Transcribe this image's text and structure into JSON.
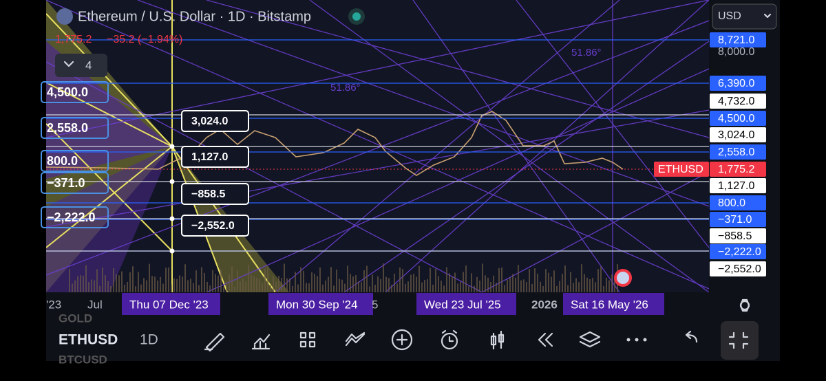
{
  "header": {
    "title": "Ethereum / U.S. Dollar · 1D · Bitstamp",
    "price": "1,775.2",
    "change": "−35.2 (−1.94%)",
    "indicator_count": "4",
    "currency": "USD"
  },
  "price_axis": [
    {
      "label": "8,721.0",
      "color": "#2962ff"
    },
    {
      "label": "8,000.0",
      "color": null
    },
    {
      "label": "6,390.0",
      "color": "#2962ff"
    },
    {
      "label": "4,732.0",
      "color": "#ffffff"
    },
    {
      "label": "4,500.0",
      "color": "#2962ff"
    },
    {
      "label": "3,024.0",
      "color": "#ffffff"
    },
    {
      "label": "2,558.0",
      "color": "#2962ff"
    },
    {
      "label": "1,775.2",
      "color": "#f23645"
    },
    {
      "label": "1,127.0",
      "color": "#ffffff"
    },
    {
      "label": "800.0",
      "color": "#2962ff"
    },
    {
      "label": "−371.0",
      "color": "#2962ff"
    },
    {
      "label": "−858.5",
      "color": "#ffffff"
    },
    {
      "label": "−2,222.0",
      "color": "#2962ff"
    },
    {
      "label": "−2,552.0",
      "color": "#ffffff"
    }
  ],
  "symbol_tag": "ETHUSD",
  "left_labels": [
    "4,500.0",
    "2,558.0",
    "800.0",
    "−371.0",
    "−2,222.0"
  ],
  "chart_labels": [
    "3,024.0",
    "1,127.0",
    "−858.5",
    "−2,552.0"
  ],
  "angle_labels": [
    "51.86°",
    "51.86°"
  ],
  "time_axis": [
    {
      "label": "'23",
      "highlight": false
    },
    {
      "label": "Jul",
      "highlight": false
    },
    {
      "label": "Thu 07 Dec '23",
      "highlight": true
    },
    {
      "label": "Mon 30 Sep '24",
      "highlight": true
    },
    {
      "label": "5",
      "highlight": false
    },
    {
      "label": "Wed 23 Jul '25",
      "highlight": true
    },
    {
      "label": "2026",
      "highlight": false
    },
    {
      "label": "Sat 16 May '26",
      "highlight": true
    }
  ],
  "toolbar": {
    "above": "GOLD",
    "symbol": "ETHUSD",
    "interval": "1D",
    "below": "BTCUSD"
  }
}
